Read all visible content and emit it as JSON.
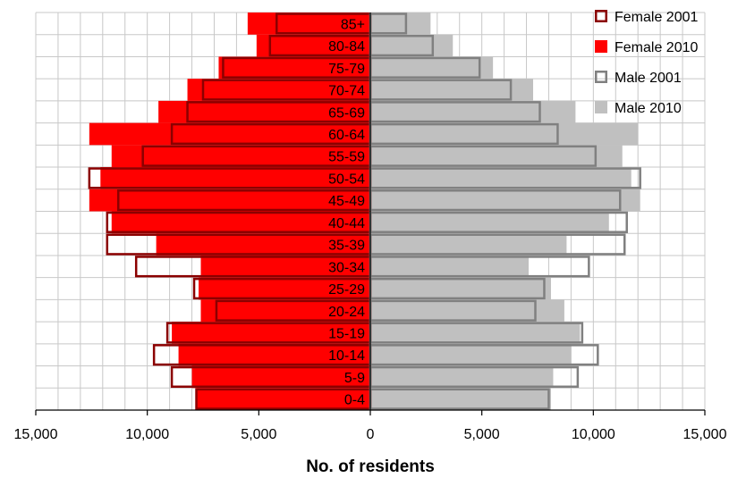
{
  "chart_data": {
    "type": "bar",
    "subtype": "population-pyramid",
    "categories": [
      "0-4",
      "5-9",
      "10-14",
      "15-19",
      "20-24",
      "25-29",
      "30-34",
      "35-39",
      "40-44",
      "45-49",
      "50-54",
      "55-59",
      "60-64",
      "65-69",
      "70-74",
      "75-79",
      "80-84",
      "85+"
    ],
    "series": [
      {
        "name": "Female 2001",
        "side": "left",
        "style": "outline",
        "color": "#8b0000",
        "values": [
          7800,
          8900,
          9700,
          9100,
          6900,
          7900,
          10500,
          11800,
          11800,
          11300,
          12600,
          10200,
          8900,
          8200,
          7500,
          6600,
          4500,
          4200
        ]
      },
      {
        "name": "Female 2010",
        "side": "left",
        "style": "fill",
        "color": "#ff0000",
        "values": [
          7800,
          8000,
          8600,
          8900,
          7600,
          7700,
          7600,
          9600,
          11600,
          12600,
          12100,
          11600,
          12600,
          9500,
          8200,
          6800,
          5100,
          5500
        ]
      },
      {
        "name": "Male 2001",
        "side": "right",
        "style": "outline",
        "color": "#808080",
        "values": [
          8000,
          9300,
          10200,
          9500,
          7400,
          7800,
          9800,
          11400,
          11500,
          11200,
          12100,
          10100,
          8400,
          7600,
          6300,
          4900,
          2800,
          1600
        ]
      },
      {
        "name": "Male 2010",
        "side": "right",
        "style": "fill",
        "color": "#c0c0c0",
        "values": [
          8100,
          8200,
          9000,
          9400,
          8700,
          8100,
          7100,
          8800,
          10700,
          12100,
          11700,
          11300,
          12000,
          9200,
          7300,
          5500,
          3700,
          2700
        ]
      }
    ],
    "x_ticks": [
      "15,000",
      "10,000",
      "5,000",
      "0",
      "5,000",
      "10,000",
      "15,000"
    ],
    "xlim": [
      -15000,
      15000
    ],
    "xlabel": "No. of residents",
    "ylabel": "",
    "title": "",
    "grid": true,
    "legend_position": "top-right"
  }
}
